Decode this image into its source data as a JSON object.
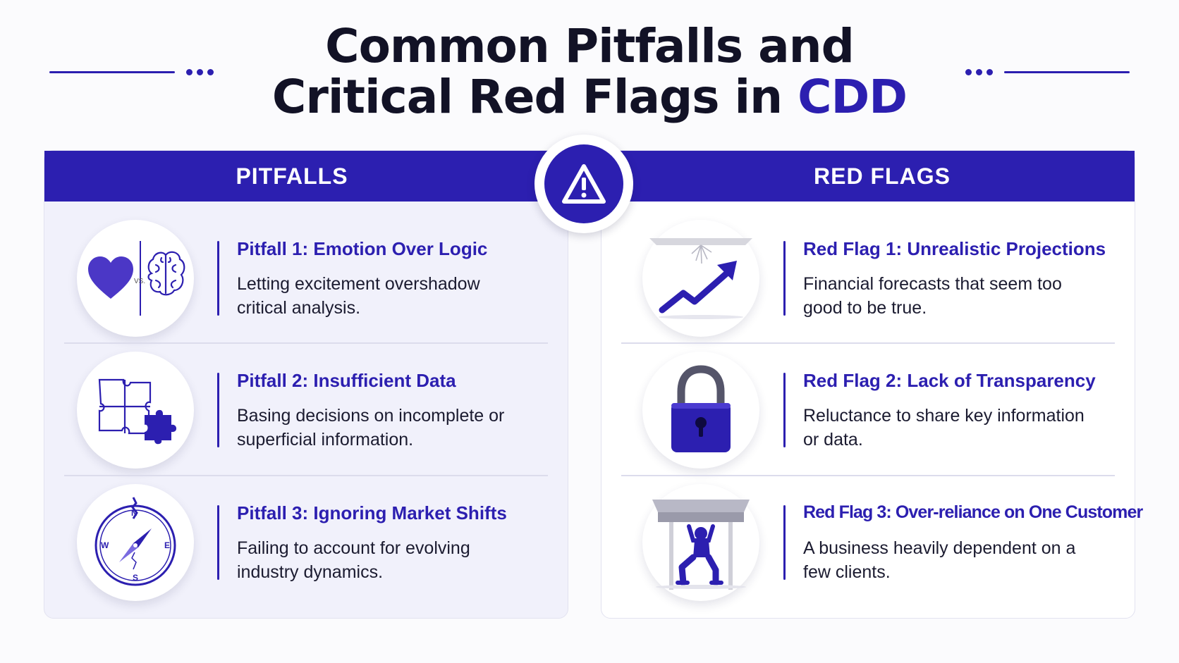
{
  "title": {
    "line1": "Common Pitfalls and",
    "line2_prefix": "Critical Red Flags in ",
    "line2_accent": "CDD"
  },
  "center_icon": "warning-triangle-icon",
  "colors": {
    "accent": "#2c1fb0",
    "text": "#121226",
    "panel_left_bg": "#f1f1fb",
    "panel_right_bg": "#ffffff"
  },
  "pitfalls": {
    "header": "PITFALLS",
    "items": [
      {
        "title": "Pitfall 1: Emotion Over Logic",
        "desc": "Letting excitement overshadow critical analysis.",
        "icon": "heart-vs-brain-icon",
        "icon_text": "VS."
      },
      {
        "title": "Pitfall 2: Insufficient Data",
        "desc": "Basing decisions on incomplete or superficial information.",
        "icon": "puzzle-icon"
      },
      {
        "title": "Pitfall 3: Ignoring Market Shifts",
        "desc": "Failing to account for evolving industry dynamics.",
        "icon": "compass-icon",
        "compass_labels": {
          "n": "N",
          "e": "E",
          "s": "S",
          "w": "W"
        }
      }
    ]
  },
  "red_flags": {
    "header": "RED FLAGS",
    "items": [
      {
        "title": "Red Flag 1: Unrealistic Projections",
        "desc": "Financial forecasts that seem too good to be true.",
        "icon": "rising-arrow-icon"
      },
      {
        "title": "Red Flag 2: Lack of Transparency",
        "desc": "Reluctance to share key information or data.",
        "icon": "padlock-icon"
      },
      {
        "title": "Red Flag 3: Over-reliance on One Customer",
        "desc": "A business heavily dependent on a few clients.",
        "icon": "person-holding-weight-icon"
      }
    ]
  }
}
